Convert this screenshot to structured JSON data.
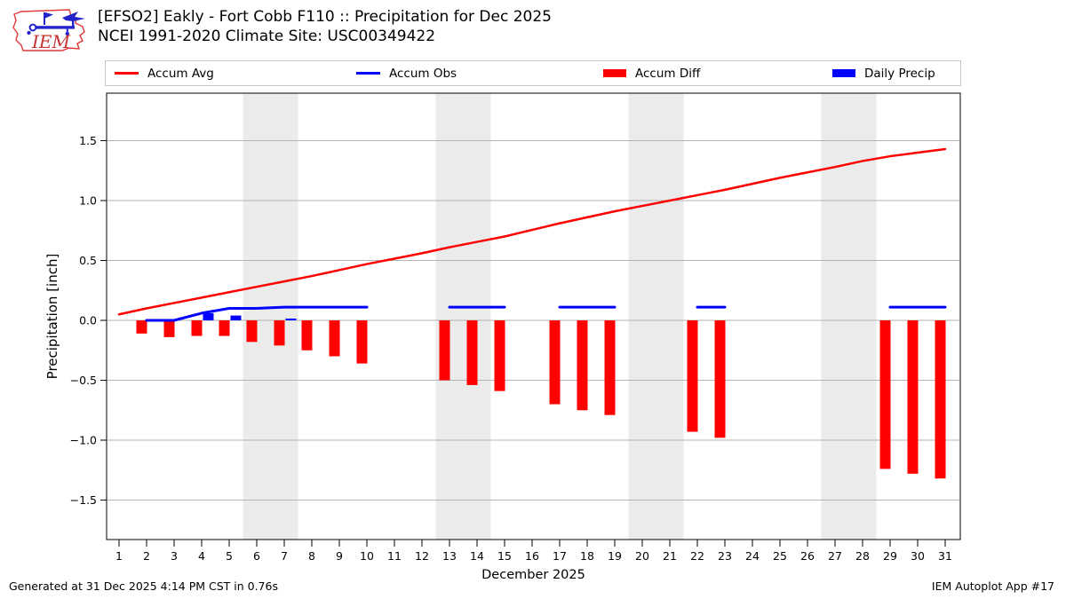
{
  "header": {
    "title_line1": "[EFSO2] Eakly - Fort Cobb F110 :: Precipitation for Dec 2025",
    "title_line2": "NCEI 1991-2020 Climate Site: USC00349422",
    "logo_text": "IEM"
  },
  "legend": {
    "items": [
      {
        "label": "Accum Avg",
        "type": "line",
        "color": "#ff0000"
      },
      {
        "label": "Accum Obs",
        "type": "line",
        "color": "#0000ff"
      },
      {
        "label": "Accum Diff",
        "type": "box",
        "color": "#ff0000"
      },
      {
        "label": "Daily Precip",
        "type": "box",
        "color": "#0000ff"
      }
    ]
  },
  "footer": {
    "left": "Generated at 31 Dec 2025 4:14 PM CST in 0.76s",
    "right": "IEM Autoplot App #17"
  },
  "chart_data": {
    "type": "line+bar",
    "title": "[EFSO2] Eakly - Fort Cobb F110 :: Precipitation for Dec 2025",
    "xlabel": "December 2025",
    "ylabel": "Precipitation [inch]",
    "x_tick_days": [
      1,
      2,
      3,
      4,
      5,
      6,
      7,
      8,
      9,
      10,
      11,
      12,
      13,
      14,
      15,
      16,
      17,
      18,
      19,
      20,
      21,
      22,
      23,
      24,
      25,
      26,
      27,
      28,
      29,
      30,
      31
    ],
    "y_tick_values": [
      1.5,
      1.0,
      0.5,
      0.0,
      -0.5,
      -1.0,
      -1.5
    ],
    "y_tick_labels": [
      "1.5",
      "1.0",
      "0.5",
      "0.0",
      "−0.5",
      "−1.0",
      "−1.5"
    ],
    "ylim": [
      -1.83,
      1.9
    ],
    "xlim": [
      0.55,
      31.55
    ],
    "grid": "horizontal",
    "legend_position": "top",
    "weekend_shading_days": [
      [
        6,
        7
      ],
      [
        13,
        14
      ],
      [
        20,
        21
      ],
      [
        27,
        28
      ]
    ],
    "colors": {
      "accum_avg": "#ff0000",
      "accum_obs": "#0000ff",
      "accum_diff": "#ff0000",
      "daily_precip": "#0000ff",
      "weekend_band": "#ebebeb",
      "gridline": "#b3b3b3",
      "spine": "#000000"
    },
    "series": [
      {
        "name": "Accum Avg",
        "type": "line",
        "days": [
          1,
          2,
          3,
          4,
          5,
          6,
          7,
          8,
          9,
          10,
          11,
          12,
          13,
          14,
          15,
          16,
          17,
          18,
          19,
          20,
          21,
          22,
          23,
          24,
          25,
          26,
          27,
          28,
          29,
          30,
          31
        ],
        "values": [
          0.05,
          0.1,
          0.145,
          0.19,
          0.235,
          0.28,
          0.325,
          0.37,
          0.42,
          0.47,
          0.515,
          0.56,
          0.61,
          0.655,
          0.7,
          0.755,
          0.81,
          0.86,
          0.91,
          0.955,
          1.0,
          1.045,
          1.09,
          1.14,
          1.19,
          1.235,
          1.28,
          1.33,
          1.37,
          1.4,
          1.43
        ]
      },
      {
        "name": "Accum Obs",
        "type": "line",
        "segments": [
          [
            [
              2,
              0.0
            ],
            [
              3,
              0.0
            ],
            [
              4,
              0.06
            ],
            [
              5,
              0.1
            ],
            [
              6,
              0.1
            ],
            [
              7,
              0.11
            ],
            [
              8,
              0.11
            ],
            [
              9,
              0.11
            ],
            [
              10,
              0.11
            ]
          ],
          [
            [
              13,
              0.11
            ],
            [
              14,
              0.11
            ],
            [
              15,
              0.11
            ]
          ],
          [
            [
              17,
              0.11
            ],
            [
              18,
              0.11
            ],
            [
              19,
              0.11
            ]
          ],
          [
            [
              22,
              0.11
            ],
            [
              23,
              0.11
            ]
          ],
          [
            [
              29,
              0.11
            ],
            [
              30,
              0.11
            ],
            [
              31,
              0.11
            ]
          ]
        ]
      },
      {
        "name": "Accum Diff",
        "type": "bar",
        "points": [
          [
            2,
            -0.11
          ],
          [
            3,
            -0.14
          ],
          [
            4,
            -0.13
          ],
          [
            5,
            -0.13
          ],
          [
            6,
            -0.18
          ],
          [
            7,
            -0.21
          ],
          [
            8,
            -0.25
          ],
          [
            9,
            -0.3
          ],
          [
            10,
            -0.36
          ],
          [
            13,
            -0.5
          ],
          [
            14,
            -0.54
          ],
          [
            15,
            -0.59
          ],
          [
            17,
            -0.7
          ],
          [
            18,
            -0.75
          ],
          [
            19,
            -0.79
          ],
          [
            22,
            -0.93
          ],
          [
            23,
            -0.98
          ],
          [
            29,
            -1.24
          ],
          [
            30,
            -1.28
          ],
          [
            31,
            -1.32
          ]
        ]
      },
      {
        "name": "Daily Precip",
        "type": "bar",
        "points": [
          [
            4,
            0.06
          ],
          [
            5,
            0.04
          ],
          [
            7,
            0.015
          ]
        ]
      }
    ]
  }
}
